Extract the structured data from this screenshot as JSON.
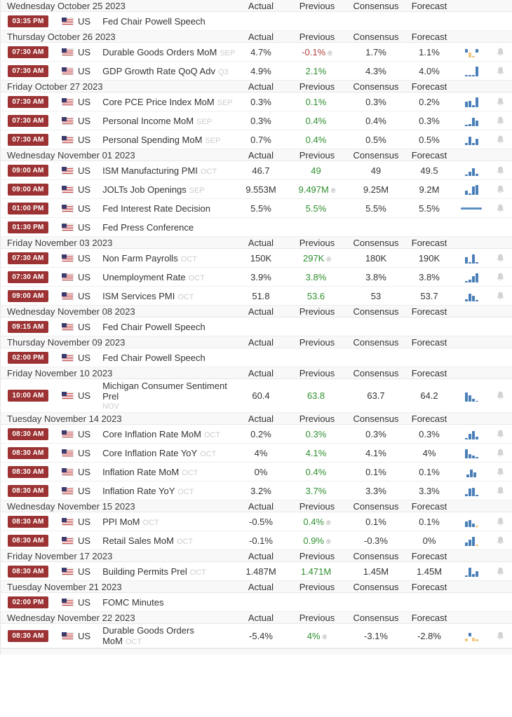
{
  "columns": [
    "Actual",
    "Previous",
    "Consensus",
    "Forecast"
  ],
  "colors": {
    "badge_bg": "#9c3233",
    "green": "#2f8f2f",
    "red": "#b04240",
    "spark_blue": "#4a7fb8",
    "spark_orange": "#f2c77f",
    "bell_gray": "#d2d2d2",
    "header_bg": "#f8f8f8",
    "ref_gray": "#cccccc"
  },
  "revised_symbol": "®",
  "country_label": "US",
  "sections": [
    {
      "date": "Wednesday October 25 2023",
      "events": [
        {
          "time": "03:35 PM",
          "title": "Fed Chair Powell Speech",
          "ref": "",
          "actual": "",
          "previous": "",
          "prev_color": "",
          "revised": false,
          "consensus": "",
          "forecast": "",
          "spark": null,
          "bell": false
        }
      ]
    },
    {
      "date": "Thursday October 26 2023",
      "events": [
        {
          "time": "07:30 AM",
          "title": "Durable Goods Orders MoM",
          "ref": "SEP",
          "actual": "4.7%",
          "previous": "-0.1%",
          "prev_color": "red",
          "revised": true,
          "consensus": "1.7%",
          "forecast": "1.1%",
          "spark": {
            "type": "bars",
            "bars": [
              {
                "h": 5,
                "c": "blue",
                "lift": 7
              },
              {
                "h": 7,
                "c": "orange",
                "lift": 0
              },
              {
                "h": 2,
                "c": "orange",
                "lift": 0
              },
              {
                "h": 5,
                "c": "blue",
                "lift": 7
              }
            ]
          },
          "bell": true
        },
        {
          "time": "07:30 AM",
          "title": "GDP Growth Rate QoQ Adv",
          "ref": "Q3",
          "actual": "4.9%",
          "previous": "2.1%",
          "prev_color": "green",
          "revised": false,
          "consensus": "4.3%",
          "forecast": "4.0%",
          "spark": {
            "type": "bars",
            "bars": [
              {
                "h": 2,
                "c": "blue",
                "lift": 0
              },
              {
                "h": 2,
                "c": "blue",
                "lift": 0
              },
              {
                "h": 2,
                "c": "blue",
                "lift": 0
              },
              {
                "h": 14,
                "c": "blue",
                "lift": 0
              }
            ]
          },
          "bell": true
        }
      ]
    },
    {
      "date": "Friday October 27 2023",
      "events": [
        {
          "time": "07:30 AM",
          "title": "Core PCE Price Index MoM",
          "ref": "SEP",
          "actual": "0.3%",
          "previous": "0.1%",
          "prev_color": "green",
          "revised": false,
          "consensus": "0.3%",
          "forecast": "0.2%",
          "spark": {
            "type": "bars",
            "bars": [
              {
                "h": 8,
                "c": "blue",
                "lift": 0
              },
              {
                "h": 9,
                "c": "blue",
                "lift": 0
              },
              {
                "h": 3,
                "c": "blue",
                "lift": 0
              },
              {
                "h": 14,
                "c": "blue",
                "lift": 0
              }
            ]
          },
          "bell": true
        },
        {
          "time": "07:30 AM",
          "title": "Personal Income MoM",
          "ref": "SEP",
          "actual": "0.3%",
          "previous": "0.4%",
          "prev_color": "green",
          "revised": false,
          "consensus": "0.4%",
          "forecast": "0.3%",
          "spark": {
            "type": "bars",
            "bars": [
              {
                "h": 2,
                "c": "blue",
                "lift": 0
              },
              {
                "h": 3,
                "c": "blue",
                "lift": 0
              },
              {
                "h": 12,
                "c": "blue",
                "lift": 0
              },
              {
                "h": 8,
                "c": "blue",
                "lift": 0
              }
            ]
          },
          "bell": true
        },
        {
          "time": "07:30 AM",
          "title": "Personal Spending MoM",
          "ref": "SEP",
          "actual": "0.7%",
          "previous": "0.4%",
          "prev_color": "green",
          "revised": false,
          "consensus": "0.5%",
          "forecast": "0.5%",
          "spark": {
            "type": "bars",
            "bars": [
              {
                "h": 3,
                "c": "blue",
                "lift": 0
              },
              {
                "h": 12,
                "c": "blue",
                "lift": 0
              },
              {
                "h": 3,
                "c": "blue",
                "lift": 0
              },
              {
                "h": 9,
                "c": "blue",
                "lift": 0
              }
            ]
          },
          "bell": true
        }
      ]
    },
    {
      "date": "Wednesday November 01 2023",
      "events": [
        {
          "time": "09:00 AM",
          "title": "ISM Manufacturing PMI",
          "ref": "OCT",
          "actual": "46.7",
          "previous": "49",
          "prev_color": "green",
          "revised": false,
          "consensus": "49",
          "forecast": "49.5",
          "spark": {
            "type": "bars",
            "bars": [
              {
                "h": 2,
                "c": "blue",
                "lift": 0
              },
              {
                "h": 6,
                "c": "blue",
                "lift": 0
              },
              {
                "h": 11,
                "c": "blue",
                "lift": 0
              },
              {
                "h": 3,
                "c": "blue",
                "lift": 0
              }
            ]
          },
          "bell": true
        },
        {
          "time": "09:00 AM",
          "title": "JOLTs Job Openings",
          "ref": "SEP",
          "actual": "9.553M",
          "previous": "9.497M",
          "prev_color": "green",
          "revised": true,
          "consensus": "9.25M",
          "forecast": "9.2M",
          "spark": {
            "type": "bars",
            "bars": [
              {
                "h": 6,
                "c": "blue",
                "lift": 0
              },
              {
                "h": 2,
                "c": "blue",
                "lift": 0
              },
              {
                "h": 12,
                "c": "blue",
                "lift": 0
              },
              {
                "h": 14,
                "c": "blue",
                "lift": 0
              }
            ]
          },
          "bell": true
        },
        {
          "time": "01:00 PM",
          "title": "Fed Interest Rate Decision",
          "ref": "",
          "actual": "5.5%",
          "previous": "5.5%",
          "prev_color": "green",
          "revised": false,
          "consensus": "5.5%",
          "forecast": "5.5%",
          "spark": {
            "type": "line"
          },
          "bell": true
        },
        {
          "time": "01:30 PM",
          "title": "Fed Press Conference",
          "ref": "",
          "actual": "",
          "previous": "",
          "prev_color": "",
          "revised": false,
          "consensus": "",
          "forecast": "",
          "spark": null,
          "bell": false
        }
      ]
    },
    {
      "date": "Friday November 03 2023",
      "events": [
        {
          "time": "07:30 AM",
          "title": "Non Farm Payrolls",
          "ref": "OCT",
          "actual": "150K",
          "previous": "297K",
          "prev_color": "green",
          "revised": true,
          "consensus": "180K",
          "forecast": "190K",
          "spark": {
            "type": "bars",
            "bars": [
              {
                "h": 9,
                "c": "blue",
                "lift": 0
              },
              {
                "h": 2,
                "c": "blue",
                "lift": 0
              },
              {
                "h": 13,
                "c": "blue",
                "lift": 0
              },
              {
                "h": 2,
                "c": "blue",
                "lift": 0
              }
            ]
          },
          "bell": true
        },
        {
          "time": "07:30 AM",
          "title": "Unemployment Rate",
          "ref": "OCT",
          "actual": "3.9%",
          "previous": "3.8%",
          "prev_color": "green",
          "revised": false,
          "consensus": "3.8%",
          "forecast": "3.8%",
          "spark": {
            "type": "bars",
            "bars": [
              {
                "h": 2,
                "c": "blue",
                "lift": 0
              },
              {
                "h": 4,
                "c": "blue",
                "lift": 0
              },
              {
                "h": 9,
                "c": "blue",
                "lift": 0
              },
              {
                "h": 13,
                "c": "blue",
                "lift": 0
              }
            ]
          },
          "bell": true
        },
        {
          "time": "09:00 AM",
          "title": "ISM Services PMI",
          "ref": "OCT",
          "actual": "51.8",
          "previous": "53.6",
          "prev_color": "green",
          "revised": false,
          "consensus": "53",
          "forecast": "53.7",
          "spark": {
            "type": "bars",
            "bars": [
              {
                "h": 3,
                "c": "blue",
                "lift": 0
              },
              {
                "h": 11,
                "c": "blue",
                "lift": 0
              },
              {
                "h": 8,
                "c": "blue",
                "lift": 0
              },
              {
                "h": 2,
                "c": "blue",
                "lift": 0
              }
            ]
          },
          "bell": true
        }
      ]
    },
    {
      "date": "Wednesday November 08 2023",
      "events": [
        {
          "time": "09:15 AM",
          "title": "Fed Chair Powell Speech",
          "ref": "",
          "actual": "",
          "previous": "",
          "prev_color": "",
          "revised": false,
          "consensus": "",
          "forecast": "",
          "spark": null,
          "bell": false
        }
      ]
    },
    {
      "date": "Thursday November 09 2023",
      "events": [
        {
          "time": "02:00 PM",
          "title": "Fed Chair Powell Speech",
          "ref": "",
          "actual": "",
          "previous": "",
          "prev_color": "",
          "revised": false,
          "consensus": "",
          "forecast": "",
          "spark": null,
          "bell": false
        }
      ]
    },
    {
      "date": "Friday November 10 2023",
      "events": [
        {
          "time": "10:00 AM",
          "title": "Michigan Consumer Sentiment Prel",
          "ref": "NOV",
          "ref_block": true,
          "actual": "60.4",
          "previous": "63.8",
          "prev_color": "green",
          "revised": false,
          "consensus": "63.7",
          "forecast": "64.2",
          "spark": {
            "type": "bars",
            "bars": [
              {
                "h": 13,
                "c": "blue",
                "lift": 0
              },
              {
                "h": 9,
                "c": "blue",
                "lift": 0
              },
              {
                "h": 4,
                "c": "blue",
                "lift": 0
              },
              {
                "h": 1,
                "c": "blue",
                "lift": 0
              }
            ]
          },
          "bell": true
        }
      ]
    },
    {
      "date": "Tuesday November 14 2023",
      "events": [
        {
          "time": "08:30 AM",
          "title": "Core Inflation Rate MoM",
          "ref": "OCT",
          "actual": "0.2%",
          "previous": "0.3%",
          "prev_color": "green",
          "revised": false,
          "consensus": "0.3%",
          "forecast": "0.3%",
          "spark": {
            "type": "bars",
            "bars": [
              {
                "h": 2,
                "c": "blue",
                "lift": 0
              },
              {
                "h": 8,
                "c": "blue",
                "lift": 0
              },
              {
                "h": 12,
                "c": "blue",
                "lift": 0
              },
              {
                "h": 4,
                "c": "blue",
                "lift": 0
              }
            ]
          },
          "bell": true
        },
        {
          "time": "08:30 AM",
          "title": "Core Inflation Rate YoY",
          "ref": "OCT",
          "actual": "4%",
          "previous": "4.1%",
          "prev_color": "green",
          "revised": false,
          "consensus": "4.1%",
          "forecast": "4%",
          "spark": {
            "type": "bars",
            "bars": [
              {
                "h": 13,
                "c": "blue",
                "lift": 0
              },
              {
                "h": 6,
                "c": "blue",
                "lift": 0
              },
              {
                "h": 4,
                "c": "blue",
                "lift": 0
              },
              {
                "h": 2,
                "c": "blue",
                "lift": 0
              }
            ]
          },
          "bell": true
        },
        {
          "time": "08:30 AM",
          "title": "Inflation Rate MoM",
          "ref": "OCT",
          "actual": "0%",
          "previous": "0.4%",
          "prev_color": "green",
          "revised": false,
          "consensus": "0.1%",
          "forecast": "0.1%",
          "spark": {
            "type": "bars",
            "bars": [
              {
                "h": 4,
                "c": "blue",
                "lift": 0
              },
              {
                "h": 11,
                "c": "blue",
                "lift": 0
              },
              {
                "h": 7,
                "c": "blue",
                "lift": 0
              }
            ]
          },
          "bell": true
        },
        {
          "time": "08:30 AM",
          "title": "Inflation Rate YoY",
          "ref": "OCT",
          "actual": "3.2%",
          "previous": "3.7%",
          "prev_color": "green",
          "revised": false,
          "consensus": "3.3%",
          "forecast": "3.3%",
          "spark": {
            "type": "bars",
            "bars": [
              {
                "h": 3,
                "c": "blue",
                "lift": 0
              },
              {
                "h": 11,
                "c": "blue",
                "lift": 0
              },
              {
                "h": 12,
                "c": "blue",
                "lift": 0
              },
              {
                "h": 2,
                "c": "blue",
                "lift": 0
              }
            ]
          },
          "bell": true
        }
      ]
    },
    {
      "date": "Wednesday November 15 2023",
      "events": [
        {
          "time": "08:30 AM",
          "title": "PPI MoM",
          "ref": "OCT",
          "actual": "-0.5%",
          "previous": "0.4%",
          "prev_color": "green",
          "revised": true,
          "consensus": "0.1%",
          "forecast": "0.1%",
          "spark": {
            "type": "bars",
            "bars": [
              {
                "h": 8,
                "c": "blue",
                "lift": 0
              },
              {
                "h": 10,
                "c": "blue",
                "lift": 0
              },
              {
                "h": 5,
                "c": "blue",
                "lift": 0
              },
              {
                "h": 2,
                "c": "orange",
                "lift": 0
              }
            ]
          },
          "bell": true
        },
        {
          "time": "08:30 AM",
          "title": "Retail Sales MoM",
          "ref": "OCT",
          "actual": "-0.1%",
          "previous": "0.9%",
          "prev_color": "green",
          "revised": true,
          "consensus": "-0.3%",
          "forecast": "0%",
          "spark": {
            "type": "bars",
            "bars": [
              {
                "h": 5,
                "c": "blue",
                "lift": 0
              },
              {
                "h": 9,
                "c": "blue",
                "lift": 0
              },
              {
                "h": 13,
                "c": "blue",
                "lift": 0
              },
              {
                "h": 2,
                "c": "orange",
                "lift": 0
              }
            ]
          },
          "bell": true
        }
      ]
    },
    {
      "date": "Friday November 17 2023",
      "events": [
        {
          "time": "08:30 AM",
          "title": "Building Permits Prel",
          "ref": "OCT",
          "actual": "1.487M",
          "previous": "1.471M",
          "prev_color": "green",
          "revised": false,
          "consensus": "1.45M",
          "forecast": "1.45M",
          "spark": {
            "type": "bars",
            "bars": [
              {
                "h": 2,
                "c": "blue",
                "lift": 0
              },
              {
                "h": 13,
                "c": "blue",
                "lift": 0
              },
              {
                "h": 4,
                "c": "blue",
                "lift": 0
              },
              {
                "h": 8,
                "c": "blue",
                "lift": 0
              }
            ]
          },
          "bell": true
        }
      ]
    },
    {
      "date": "Tuesday November 21 2023",
      "events": [
        {
          "time": "02:00 PM",
          "title": "FOMC Minutes",
          "ref": "",
          "actual": "",
          "previous": "",
          "prev_color": "",
          "revised": false,
          "consensus": "",
          "forecast": "",
          "spark": null,
          "bell": false
        }
      ]
    },
    {
      "date": "Wednesday November 22 2023",
      "events": [
        {
          "time": "08:30 AM",
          "title": "Durable Goods Orders MoM",
          "ref": "OCT",
          "actual": "-5.4%",
          "previous": "4%",
          "prev_color": "green",
          "revised": true,
          "consensus": "-3.1%",
          "forecast": "-2.8%",
          "spark": {
            "type": "bars",
            "bars": [
              {
                "h": 4,
                "c": "orange",
                "lift": 0
              },
              {
                "h": 5,
                "c": "blue",
                "lift": 7
              },
              {
                "h": 5,
                "c": "orange",
                "lift": 0
              },
              {
                "h": 3,
                "c": "orange",
                "lift": 0
              }
            ]
          },
          "bell": true
        }
      ]
    }
  ]
}
